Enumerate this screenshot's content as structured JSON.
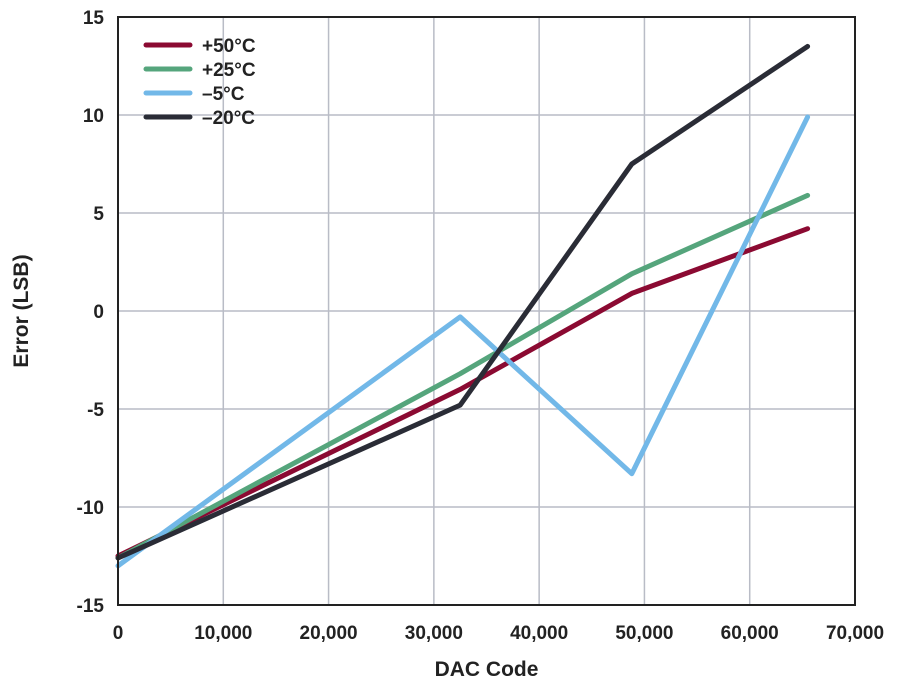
{
  "chart_data": {
    "type": "line",
    "title": "",
    "xlabel": "DAC Code",
    "ylabel": "Error (LSB)",
    "xlim": [
      0,
      70000
    ],
    "ylim": [
      -15,
      15
    ],
    "xticks": [
      0,
      10000,
      20000,
      30000,
      40000,
      50000,
      60000,
      70000
    ],
    "xtick_labels": [
      "0",
      "10,000",
      "20,000",
      "30,000",
      "40,000",
      "50,000",
      "60,000",
      "70,000"
    ],
    "yticks": [
      15,
      10,
      5,
      0,
      -5,
      -10,
      -15
    ],
    "ytick_labels": [
      "15",
      "10",
      "5",
      "0",
      "-5",
      "-10",
      "-15"
    ],
    "grid": true,
    "legend_position": "top-left",
    "series": [
      {
        "name": "+50°C",
        "color": "#8b0a32",
        "x": [
          0,
          32500,
          48800,
          65500
        ],
        "y": [
          -12.5,
          -4.0,
          0.9,
          4.2
        ]
      },
      {
        "name": "+25°C",
        "color": "#55a57c",
        "x": [
          0,
          32500,
          48800,
          65500
        ],
        "y": [
          -12.6,
          -3.2,
          1.9,
          5.9
        ]
      },
      {
        "name": "–5°C",
        "color": "#72b8e8",
        "x": [
          0,
          32500,
          48800,
          65500
        ],
        "y": [
          -13.0,
          -0.3,
          -8.3,
          9.9
        ]
      },
      {
        "name": "–20°C",
        "color": "#2a2c36",
        "x": [
          0,
          32500,
          48800,
          65500
        ],
        "y": [
          -12.6,
          -4.8,
          7.5,
          13.5
        ]
      }
    ]
  }
}
